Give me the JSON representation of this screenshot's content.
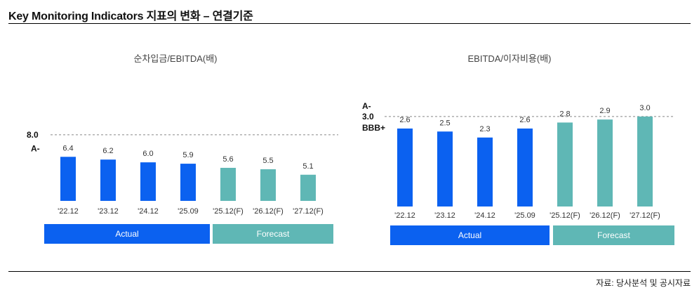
{
  "title": "Key Monitoring Indicators 지표의 변화 – 연결기준",
  "source": "자료: 당사분석 및 공시자료",
  "colors": {
    "actual": "#0b61f0",
    "forecast": "#5fb7b5"
  },
  "chart_data": [
    {
      "type": "bar",
      "title": "순차입금/EBITDA(배)",
      "categories": [
        "'22.12",
        "'23.12",
        "'24.12",
        "'25.09",
        "'25.12(F)",
        "'26.12(F)",
        "'27.12(F)"
      ],
      "values": [
        6.4,
        6.2,
        6.0,
        5.9,
        5.6,
        5.5,
        5.1
      ],
      "value_labels": [
        "6.4",
        "6.2",
        "6.0",
        "5.9",
        "5.6",
        "5.5",
        "5.1"
      ],
      "kinds": [
        "actual",
        "actual",
        "actual",
        "actual",
        "forecast",
        "forecast",
        "forecast"
      ],
      "reference_line": {
        "value": 8.0,
        "label": "8.0"
      },
      "rating_labels": [
        {
          "label": "A-",
          "value": 7.0
        }
      ],
      "legend": {
        "actual": "Actual",
        "forecast": "Forecast"
      },
      "ylim": [
        3.2,
        8.0
      ],
      "grid": false
    },
    {
      "type": "bar",
      "title": "EBITDA/이자비용(배)",
      "categories": [
        "'22.12",
        "'23.12",
        "'24.12",
        "'25.09",
        "'25.12(F)",
        "'26.12(F)",
        "'27.12(F)"
      ],
      "values": [
        2.6,
        2.5,
        2.3,
        2.6,
        2.8,
        2.9,
        3.0
      ],
      "value_labels": [
        "2.6",
        "2.5",
        "2.3",
        "2.6",
        "2.8",
        "2.9",
        "3.0"
      ],
      "kinds": [
        "actual",
        "actual",
        "actual",
        "actual",
        "forecast",
        "forecast",
        "forecast"
      ],
      "reference_line": {
        "value": 3.0,
        "label": "3.0"
      },
      "rating_labels": [
        {
          "label": "A-",
          "value": 3.35
        },
        {
          "label": "BBB+",
          "value": 2.62
        }
      ],
      "legend": {
        "actual": "Actual",
        "forecast": "Forecast"
      },
      "ylim": [
        0,
        3.0
      ],
      "grid": false
    }
  ]
}
